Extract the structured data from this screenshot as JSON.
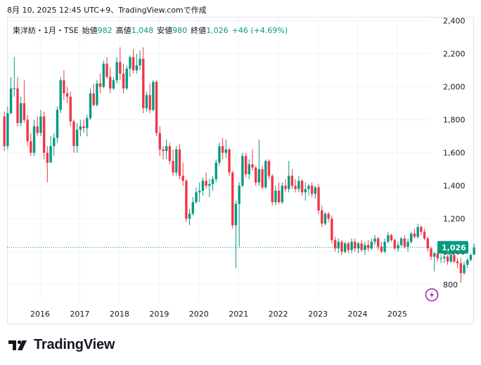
{
  "header": {
    "timestamp": "8月 10, 2025 12:45 UTC+9、TradingView.comで作成"
  },
  "legend": {
    "symbol": "東洋紡・1月・TSE",
    "open_label": "始値",
    "open_value": "982",
    "high_label": "高値",
    "high_value": "1,048",
    "low_label": "安値",
    "low_value": "980",
    "close_label": "終値",
    "close_value": "1,026",
    "change": "+46 (+4.69%)"
  },
  "footer": {
    "brand": "TradingView"
  },
  "colors": {
    "up": "#089981",
    "down": "#f23645",
    "grid": "#f0f3fa",
    "price_line": "#089981",
    "flash_icon": "#9c27b0"
  },
  "icons": [
    "tradingview-logo-icon",
    "flash-icon"
  ],
  "chart_data": {
    "type": "candlestick",
    "interval": "1M",
    "last_price_label": "1,026",
    "last_price": 1026,
    "ylim": [
      700,
      2420
    ],
    "y_ticks": [
      800,
      1000,
      1200,
      1400,
      1600,
      1800,
      2000,
      2200,
      2400
    ],
    "y_tick_labels": [
      "800",
      "1,000",
      "1,200",
      "1,400",
      "1,600",
      "1,800",
      "2,000",
      "2,200",
      "2,400"
    ],
    "x_ticks": [
      "2016",
      "2017",
      "2018",
      "2019",
      "2020",
      "2021",
      "2022",
      "2023",
      "2024",
      "2025"
    ],
    "x_tick_values": [
      2016,
      2017,
      2018,
      2019,
      2020,
      2021,
      2022,
      2023,
      2024,
      2025
    ],
    "x_start": 2015.1,
    "candles": [
      [
        1820,
        1850,
        1610,
        1640
      ],
      [
        1640,
        1880,
        1620,
        1840
      ],
      [
        1840,
        2060,
        1830,
        1990
      ],
      [
        1990,
        2180,
        1940,
        1990
      ],
      [
        1990,
        2060,
        1760,
        1780
      ],
      [
        1780,
        1940,
        1760,
        1900
      ],
      [
        1900,
        2040,
        1780,
        1800
      ],
      [
        1800,
        1830,
        1640,
        1670
      ],
      [
        1670,
        1720,
        1580,
        1600
      ],
      [
        1600,
        1800,
        1580,
        1760
      ],
      [
        1760,
        1820,
        1700,
        1720
      ],
      [
        1720,
        1860,
        1700,
        1820
      ],
      [
        1820,
        1850,
        1560,
        1600
      ],
      [
        1600,
        1640,
        1420,
        1540
      ],
      [
        1540,
        1700,
        1540,
        1640
      ],
      [
        1640,
        1720,
        1580,
        1690
      ],
      [
        1690,
        1880,
        1660,
        1860
      ],
      [
        1860,
        2060,
        1840,
        2040
      ],
      [
        2040,
        2100,
        1920,
        1960
      ],
      [
        1960,
        2000,
        1900,
        1940
      ],
      [
        1940,
        1970,
        1760,
        1790
      ],
      [
        1790,
        1800,
        1600,
        1640
      ],
      [
        1640,
        1780,
        1600,
        1740
      ],
      [
        1740,
        1800,
        1700,
        1760
      ],
      [
        1760,
        1800,
        1720,
        1750
      ],
      [
        1750,
        1830,
        1700,
        1810
      ],
      [
        1810,
        1990,
        1800,
        1960
      ],
      [
        1960,
        2020,
        1880,
        1890
      ],
      [
        1890,
        2040,
        1880,
        2020
      ],
      [
        2020,
        2080,
        1960,
        2000
      ],
      [
        2000,
        2160,
        1990,
        2140
      ],
      [
        2140,
        2180,
        2050,
        2060
      ],
      [
        2060,
        2120,
        1960,
        1990
      ],
      [
        1990,
        2060,
        1980,
        2040
      ],
      [
        2040,
        2180,
        2020,
        2150
      ],
      [
        2150,
        2240,
        2040,
        2080
      ],
      [
        2080,
        2140,
        1960,
        1990
      ],
      [
        1990,
        2130,
        1980,
        2110
      ],
      [
        2110,
        2190,
        2060,
        2180
      ],
      [
        2180,
        2230,
        2080,
        2100
      ],
      [
        2100,
        2200,
        2080,
        2130
      ],
      [
        2130,
        2220,
        2100,
        2170
      ],
      [
        2170,
        2240,
        1840,
        1870
      ],
      [
        1870,
        1970,
        1850,
        1950
      ],
      [
        1950,
        2020,
        1840,
        1860
      ],
      [
        1860,
        2040,
        1850,
        2030
      ],
      [
        2030,
        2040,
        1700,
        1720
      ],
      [
        1720,
        1760,
        1580,
        1620
      ],
      [
        1620,
        1640,
        1560,
        1610
      ],
      [
        1610,
        1680,
        1560,
        1640
      ],
      [
        1640,
        1660,
        1530,
        1550
      ],
      [
        1550,
        1620,
        1460,
        1480
      ],
      [
        1480,
        1640,
        1460,
        1620
      ],
      [
        1620,
        1650,
        1440,
        1460
      ],
      [
        1460,
        1540,
        1400,
        1430
      ],
      [
        1430,
        1440,
        1180,
        1200
      ],
      [
        1200,
        1260,
        1160,
        1230
      ],
      [
        1230,
        1330,
        1220,
        1300
      ],
      [
        1300,
        1390,
        1290,
        1360
      ],
      [
        1360,
        1420,
        1300,
        1370
      ],
      [
        1370,
        1450,
        1340,
        1430
      ],
      [
        1430,
        1480,
        1380,
        1400
      ],
      [
        1400,
        1440,
        1330,
        1410
      ],
      [
        1410,
        1460,
        1370,
        1440
      ],
      [
        1440,
        1560,
        1420,
        1540
      ],
      [
        1540,
        1660,
        1520,
        1640
      ],
      [
        1640,
        1690,
        1560,
        1600
      ],
      [
        1600,
        1680,
        1570,
        1620
      ],
      [
        1620,
        1630,
        1460,
        1480
      ],
      [
        1480,
        1490,
        1140,
        1160
      ],
      [
        1160,
        1310,
        900,
        1290
      ],
      [
        1290,
        1420,
        1030,
        1400
      ],
      [
        1400,
        1600,
        1390,
        1580
      ],
      [
        1580,
        1600,
        1450,
        1470
      ],
      [
        1470,
        1560,
        1440,
        1530
      ],
      [
        1530,
        1620,
        1490,
        1510
      ],
      [
        1510,
        1520,
        1400,
        1420
      ],
      [
        1420,
        1680,
        1400,
        1500
      ],
      [
        1500,
        1520,
        1380,
        1390
      ],
      [
        1390,
        1560,
        1380,
        1550
      ],
      [
        1550,
        1560,
        1440,
        1460
      ],
      [
        1460,
        1470,
        1280,
        1300
      ],
      [
        1300,
        1400,
        1280,
        1370
      ],
      [
        1370,
        1420,
        1290,
        1300
      ],
      [
        1300,
        1420,
        1290,
        1400
      ],
      [
        1400,
        1440,
        1360,
        1380
      ],
      [
        1380,
        1550,
        1360,
        1460
      ],
      [
        1460,
        1500,
        1380,
        1400
      ],
      [
        1400,
        1440,
        1360,
        1380
      ],
      [
        1380,
        1460,
        1360,
        1430
      ],
      [
        1430,
        1440,
        1340,
        1360
      ],
      [
        1360,
        1420,
        1310,
        1380
      ],
      [
        1380,
        1410,
        1340,
        1400
      ],
      [
        1400,
        1420,
        1330,
        1350
      ],
      [
        1350,
        1400,
        1320,
        1390
      ],
      [
        1390,
        1410,
        1230,
        1250
      ],
      [
        1250,
        1280,
        1150,
        1170
      ],
      [
        1170,
        1240,
        1160,
        1230
      ],
      [
        1230,
        1240,
        1180,
        1200
      ],
      [
        1200,
        1220,
        1050,
        1070
      ],
      [
        1070,
        1090,
        1000,
        1020
      ],
      [
        1020,
        1080,
        990,
        1060
      ],
      [
        1060,
        1070,
        980,
        1000
      ],
      [
        1000,
        1060,
        990,
        1050
      ],
      [
        1050,
        1060,
        990,
        1010
      ],
      [
        1010,
        1080,
        990,
        1060
      ],
      [
        1060,
        1080,
        1000,
        1020
      ],
      [
        1020,
        1060,
        990,
        1050
      ],
      [
        1050,
        1070,
        1000,
        1010
      ],
      [
        1010,
        1060,
        980,
        1040
      ],
      [
        1040,
        1070,
        1000,
        1020
      ],
      [
        1020,
        1080,
        1010,
        1060
      ],
      [
        1060,
        1100,
        1040,
        1080
      ],
      [
        1080,
        1090,
        1010,
        1030
      ],
      [
        1030,
        1060,
        990,
        1000
      ],
      [
        1000,
        1080,
        990,
        1060
      ],
      [
        1060,
        1120,
        1050,
        1100
      ],
      [
        1100,
        1110,
        1060,
        1070
      ],
      [
        1070,
        1080,
        1010,
        1020
      ],
      [
        1020,
        1060,
        1000,
        1040
      ],
      [
        1040,
        1090,
        1030,
        1080
      ],
      [
        1080,
        1100,
        1020,
        1030
      ],
      [
        1030,
        1080,
        1000,
        1060
      ],
      [
        1060,
        1120,
        1050,
        1110
      ],
      [
        1110,
        1140,
        1080,
        1090
      ],
      [
        1090,
        1170,
        1080,
        1150
      ],
      [
        1150,
        1160,
        1100,
        1120
      ],
      [
        1120,
        1140,
        1070,
        1080
      ],
      [
        1080,
        1090,
        1000,
        1020
      ],
      [
        1020,
        1030,
        950,
        970
      ],
      [
        970,
        1000,
        880,
        990
      ],
      [
        990,
        1010,
        940,
        960
      ],
      [
        960,
        980,
        930,
        960
      ],
      [
        960,
        990,
        930,
        970
      ],
      [
        970,
        980,
        920,
        940
      ],
      [
        940,
        990,
        930,
        980
      ],
      [
        980,
        1000,
        930,
        940
      ],
      [
        940,
        960,
        900,
        930
      ],
      [
        930,
        960,
        810,
        870
      ],
      [
        870,
        940,
        860,
        920
      ],
      [
        920,
        960,
        900,
        950
      ],
      [
        950,
        990,
        940,
        980
      ],
      [
        982,
        1048,
        980,
        1026
      ]
    ]
  }
}
